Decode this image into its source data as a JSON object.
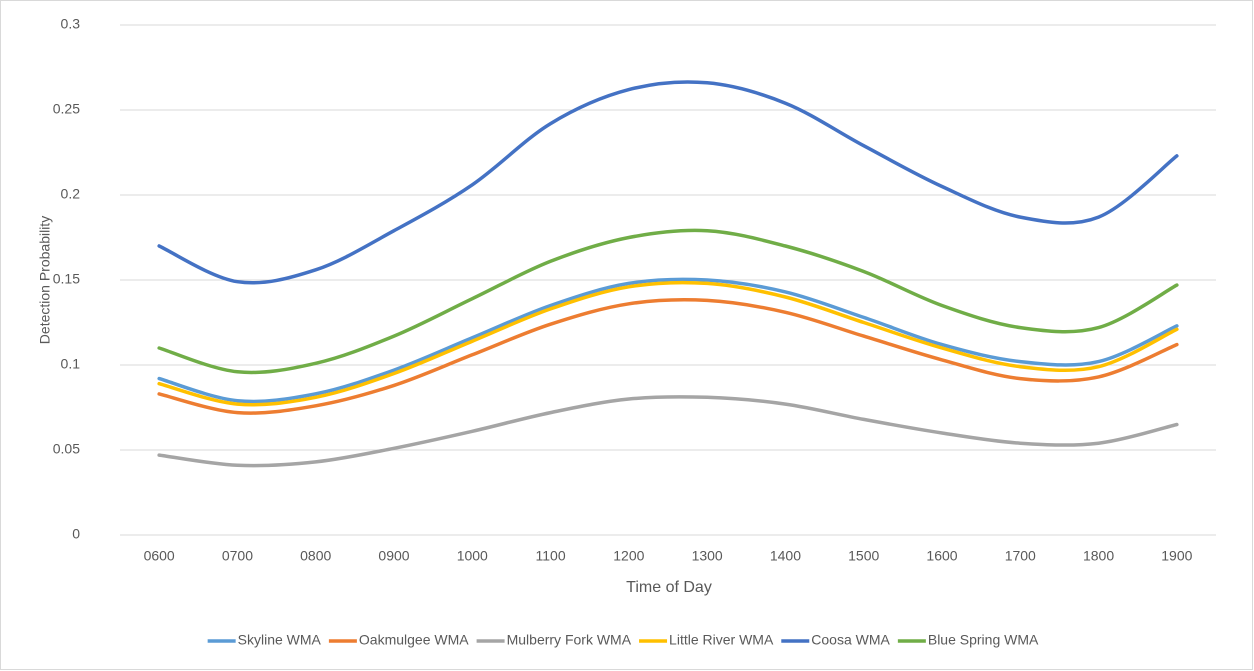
{
  "chart_data": {
    "type": "line",
    "x_label": "Time of Day",
    "y_label": "Detection Probability",
    "categories": [
      "0600",
      "0700",
      "0800",
      "0900",
      "1000",
      "1100",
      "1200",
      "1300",
      "1400",
      "1500",
      "1600",
      "1700",
      "1800",
      "1900"
    ],
    "ylim": [
      0,
      0.3
    ],
    "yticks": [
      0,
      0.05,
      0.1,
      0.15,
      0.2,
      0.25,
      0.3
    ],
    "grid": true,
    "legend": "bottom",
    "series": [
      {
        "name": "Skyline WMA",
        "color": "#5b9bd5",
        "values": [
          0.092,
          0.079,
          0.083,
          0.097,
          0.116,
          0.135,
          0.148,
          0.15,
          0.143,
          0.128,
          0.112,
          0.102,
          0.102,
          0.123
        ]
      },
      {
        "name": "Oakmulgee WMA",
        "color": "#ed7d31",
        "values": [
          0.083,
          0.072,
          0.076,
          0.088,
          0.106,
          0.124,
          0.136,
          0.138,
          0.131,
          0.117,
          0.103,
          0.092,
          0.093,
          0.112
        ]
      },
      {
        "name": "Mulberry Fork WMA",
        "color": "#a5a5a5",
        "values": [
          0.047,
          0.041,
          0.043,
          0.051,
          0.061,
          0.072,
          0.08,
          0.081,
          0.077,
          0.068,
          0.06,
          0.054,
          0.054,
          0.065
        ]
      },
      {
        "name": "Little River WMA",
        "color": "#ffc000",
        "values": [
          0.089,
          0.077,
          0.081,
          0.095,
          0.114,
          0.133,
          0.146,
          0.148,
          0.14,
          0.125,
          0.11,
          0.099,
          0.099,
          0.121
        ]
      },
      {
        "name": "Coosa WMA",
        "color": "#4472c4",
        "values": [
          0.17,
          0.149,
          0.156,
          0.179,
          0.206,
          0.242,
          0.262,
          0.266,
          0.254,
          0.229,
          0.205,
          0.187,
          0.187,
          0.223
        ]
      },
      {
        "name": "Blue Spring WMA",
        "color": "#70ad47",
        "values": [
          0.11,
          0.096,
          0.101,
          0.117,
          0.139,
          0.161,
          0.175,
          0.179,
          0.17,
          0.155,
          0.135,
          0.122,
          0.122,
          0.147
        ]
      }
    ]
  }
}
